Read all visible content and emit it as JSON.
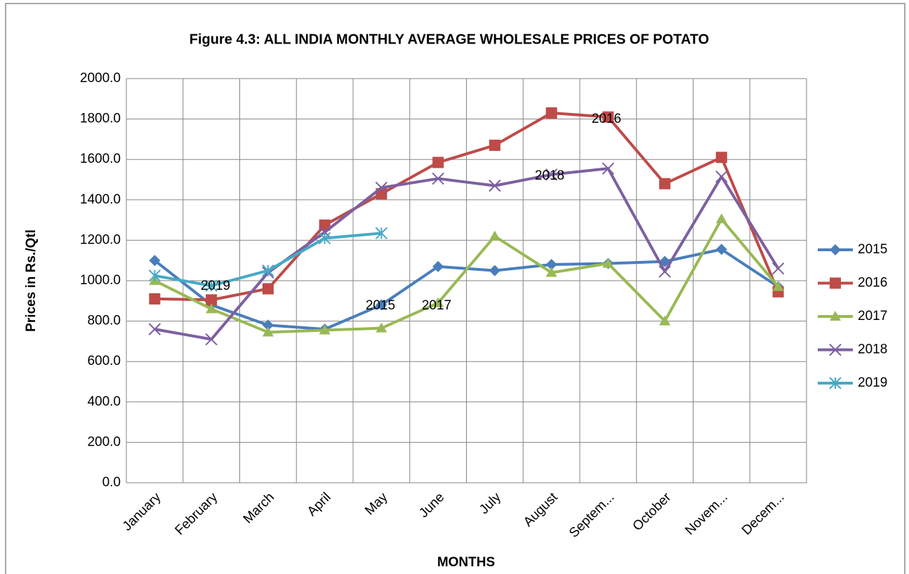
{
  "chart_data": {
    "type": "line",
    "title": "Figure 4.3: ALL INDIA MONTHLY AVERAGE WHOLESALE PRICES OF POTATO",
    "x_label": "MONTHS",
    "y_label": "Prices in Rs./Qtl",
    "categories": [
      "January",
      "February",
      "March",
      "April",
      "May",
      "June",
      "July",
      "August",
      "Septem...",
      "October",
      "Novem...",
      "Decem..."
    ],
    "series": [
      {
        "name": "2015",
        "color": "#4a7ebb",
        "marker": "diamond",
        "values": [
          1100,
          880,
          780,
          760,
          880,
          1070,
          1050,
          1080,
          1085,
          1095,
          1155,
          970
        ]
      },
      {
        "name": "2016",
        "color": "#be4b48",
        "marker": "square",
        "values": [
          910,
          905,
          960,
          1275,
          1430,
          1585,
          1670,
          1830,
          1810,
          1480,
          1610,
          945
        ]
      },
      {
        "name": "2017",
        "color": "#98b954",
        "marker": "triangle",
        "values": [
          1000,
          860,
          745,
          755,
          765,
          890,
          1220,
          1040,
          1085,
          800,
          1305,
          970
        ]
      },
      {
        "name": "2018",
        "color": "#7d60a0",
        "marker": "x",
        "values": [
          760,
          710,
          1040,
          1240,
          1460,
          1505,
          1470,
          1525,
          1555,
          1045,
          1515,
          1060
        ]
      },
      {
        "name": "2019",
        "color": "#46aac5",
        "marker": "star",
        "values": [
          1025,
          975,
          1050,
          1210,
          1235,
          null,
          null,
          null,
          null,
          null,
          null,
          null
        ]
      }
    ],
    "annotations": [
      "2019",
      "2015",
      "2017",
      "2018",
      "2016"
    ],
    "ylim": [
      0,
      2000
    ],
    "yticks": [
      {
        "value": 0,
        "label": "0.0"
      },
      {
        "value": 200,
        "label": "200.0"
      },
      {
        "value": 400,
        "label": "400.0"
      },
      {
        "value": 600,
        "label": "600.0"
      },
      {
        "value": 800,
        "label": "800.0"
      },
      {
        "value": 1000,
        "label": "1000.0"
      },
      {
        "value": 1200,
        "label": "1200.0"
      },
      {
        "value": 1400,
        "label": "1400.0"
      },
      {
        "value": 1600,
        "label": "1600.0"
      },
      {
        "value": 1800,
        "label": "1800.0"
      },
      {
        "value": 2000,
        "label": "2000.0"
      }
    ],
    "grid": true,
    "legend": "right"
  }
}
